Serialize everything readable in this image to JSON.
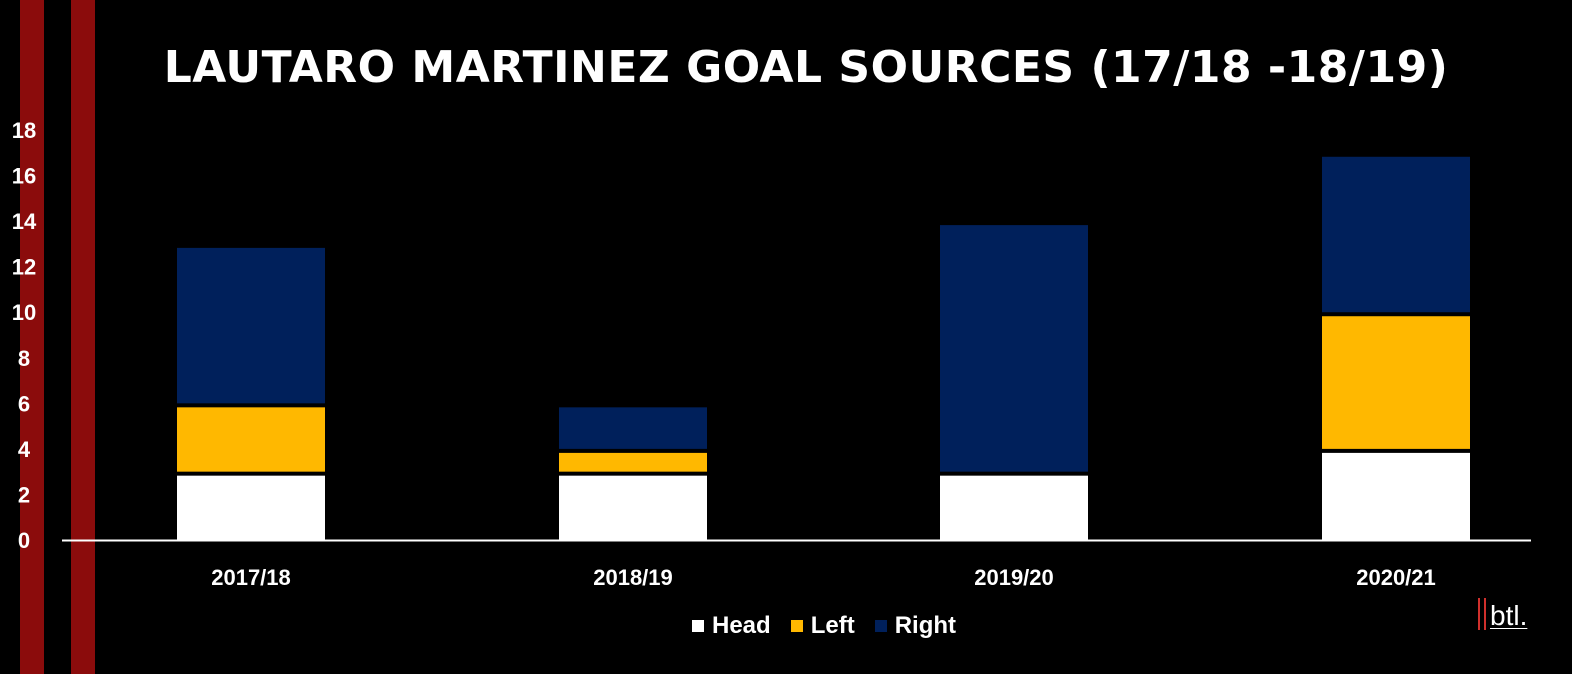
{
  "chart_data": {
    "type": "bar",
    "stacked": true,
    "title": "LAUTARO MARTINEZ GOAL SOURCES (17/18 -18/19)",
    "categories": [
      "2017/18",
      "2018/19",
      "2019/20",
      "2020/21"
    ],
    "series": [
      {
        "name": "Head",
        "values": [
          3,
          3,
          3,
          4
        ],
        "color": "#ffffff"
      },
      {
        "name": "Left",
        "values": [
          3,
          1,
          0,
          6
        ],
        "color": "#ffb800"
      },
      {
        "name": "Right",
        "values": [
          7,
          2,
          11,
          7
        ],
        "color": "#00205b"
      }
    ],
    "ylim": [
      0,
      18
    ],
    "yticks": [
      "0",
      "2",
      "4",
      "6",
      "8",
      "10",
      "12",
      "14",
      "16",
      "18"
    ],
    "grid": false,
    "legend_position": "bottom-center"
  },
  "colors": {
    "background": "#000000",
    "stripe": "#8b0c0c",
    "axis": "#ffffff",
    "logo_accent": "#d0302c"
  },
  "logo": {
    "text": "btl."
  }
}
